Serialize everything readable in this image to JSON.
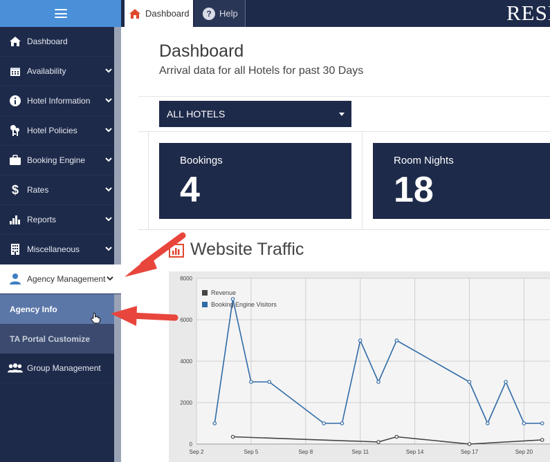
{
  "header": {
    "menu_icon": "hamburger-icon",
    "tabs": [
      {
        "label": "Dashboard",
        "icon": "home-icon"
      },
      {
        "label": "Help",
        "icon": "help-icon"
      }
    ],
    "brand_text": "RESE"
  },
  "sidebar": {
    "items": [
      {
        "label": "Dashboard",
        "icon": "home-icon"
      },
      {
        "label": "Availability",
        "icon": "calendar-icon"
      },
      {
        "label": "Hotel Information",
        "icon": "info-icon"
      },
      {
        "label": "Hotel Policies",
        "icon": "keys-icon"
      },
      {
        "label": "Booking Engine",
        "icon": "briefcase-icon"
      },
      {
        "label": "Rates",
        "icon": "dollar-icon"
      },
      {
        "label": "Reports",
        "icon": "bar-chart-icon"
      },
      {
        "label": "Miscellaneous",
        "icon": "building-icon"
      },
      {
        "label": "Agency Management",
        "icon": "user-icon"
      },
      {
        "label": "Group Management",
        "icon": "users-icon"
      }
    ],
    "subitems": [
      {
        "label": "Agency Info"
      },
      {
        "label": "TA Portal Customize"
      }
    ]
  },
  "main": {
    "title": "Dashboard",
    "subtitle": "Arrival data for all Hotels for past 30 Days",
    "hotel_select": "ALL HOTELS",
    "stats": [
      {
        "label": "Bookings",
        "value": "4"
      },
      {
        "label": "Room Nights",
        "value": "18"
      }
    ],
    "traffic_title": "Website Traffic"
  },
  "colors": {
    "navy": "#1e2a4a",
    "accent_blue": "#4a90d9",
    "series_visitors": "#2e6aa6",
    "series_revenue": "#444444",
    "arrow": "#e8453c"
  },
  "chart_data": {
    "type": "line",
    "x": [
      "Sep 3",
      "Sep 4",
      "Sep 5",
      "Sep 6",
      "Sep 7",
      "Sep 8",
      "Sep 9",
      "Sep 10",
      "Sep 11",
      "Sep 12",
      "Sep 13",
      "Sep 14",
      "Sep 15",
      "Sep 16",
      "Sep 17",
      "Sep 18",
      "Sep 19",
      "Sep 20",
      "Sep 21"
    ],
    "x_ticks": [
      "Sep 2",
      "Sep 5",
      "Sep 8",
      "Sep 11",
      "Sep 14",
      "Sep 17",
      "Sep 20"
    ],
    "y_ticks": [
      "0",
      "2000",
      "4000",
      "6000",
      "8000"
    ],
    "ylim": [
      0,
      8000
    ],
    "legend": "top-left",
    "grid": true,
    "series": [
      {
        "name": "Revenue",
        "values": [
          null,
          350,
          null,
          null,
          null,
          null,
          null,
          null,
          null,
          100,
          350,
          null,
          null,
          null,
          0,
          null,
          null,
          null,
          200
        ]
      },
      {
        "name": "Booking Engine Visitors",
        "values": [
          1000,
          7000,
          3000,
          3000,
          null,
          null,
          1000,
          1000,
          5000,
          3000,
          5000,
          null,
          null,
          null,
          3000,
          1000,
          3000,
          1000,
          1000
        ]
      }
    ]
  }
}
